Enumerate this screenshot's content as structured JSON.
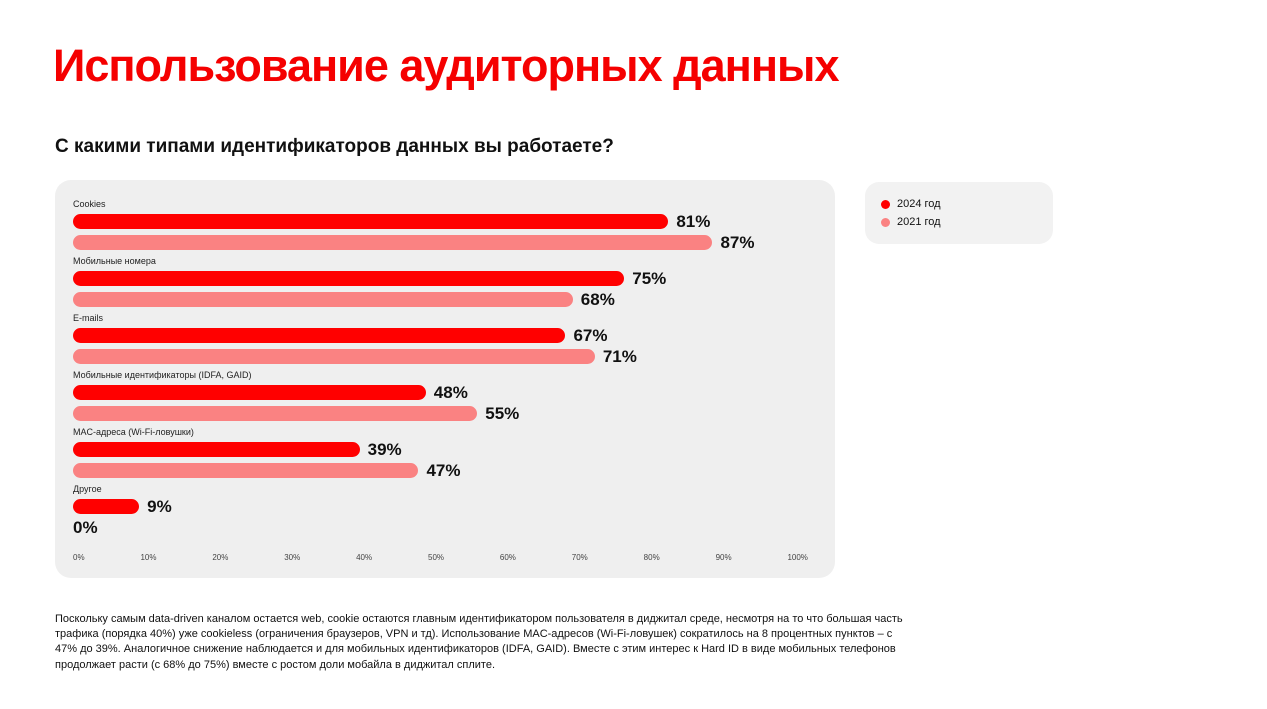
{
  "page": {
    "title": "Использование аудиторных данных",
    "subtitle": "С какими типами идентификаторов данных вы работаете?",
    "footnote": "Поскольку самым data-driven каналом остается web, cookie остаются главным идентификатором пользователя в диджитал среде, несмотря на то что большая часть трафика (порядка 40%) уже cookieless (ограничения браузеров, VPN и тд). Использование MAC-адресов (Wi-Fi-ловушек) сократилось на 8 процентных пунктов – с 47% до 39%. Аналогичное снижение наблюдается и для мобильных идентификаторов (IDFA, GAID). Вместе с этим интерес к Hard ID в виде мобильных телефонов продолжает расти (с 68% до 75%) вместе с ростом доли мобайла в диджитал сплите."
  },
  "colors": {
    "title": "#F50000",
    "chart_background": "#EFEFEF",
    "series_2024": "#FF0000",
    "series_2021": "#FA8282"
  },
  "chart_data": {
    "type": "bar",
    "orientation": "horizontal",
    "title": "С какими типами идентификаторов данных вы работаете?",
    "categories": [
      "Cookies",
      "Мобильные номера",
      "E-mails",
      "Мобильные идентификаторы (IDFA, GAID)",
      "MAC-адреса (Wi-Fi-ловушки)",
      "Другое"
    ],
    "series": [
      {
        "name": "2024 год",
        "color": "#FF0000",
        "values": [
          81,
          75,
          67,
          48,
          39,
          9
        ]
      },
      {
        "name": "2021 год",
        "color": "#FA8282",
        "values": [
          87,
          68,
          71,
          55,
          47,
          0
        ]
      }
    ],
    "value_suffix": "%",
    "xlim": [
      0,
      100
    ],
    "x_ticks": [
      "0%",
      "10%",
      "20%",
      "30%",
      "40%",
      "50%",
      "60%",
      "70%",
      "80%",
      "90%",
      "100%"
    ],
    "grid": false,
    "legend_position": "top-right",
    "value_labels": true
  }
}
